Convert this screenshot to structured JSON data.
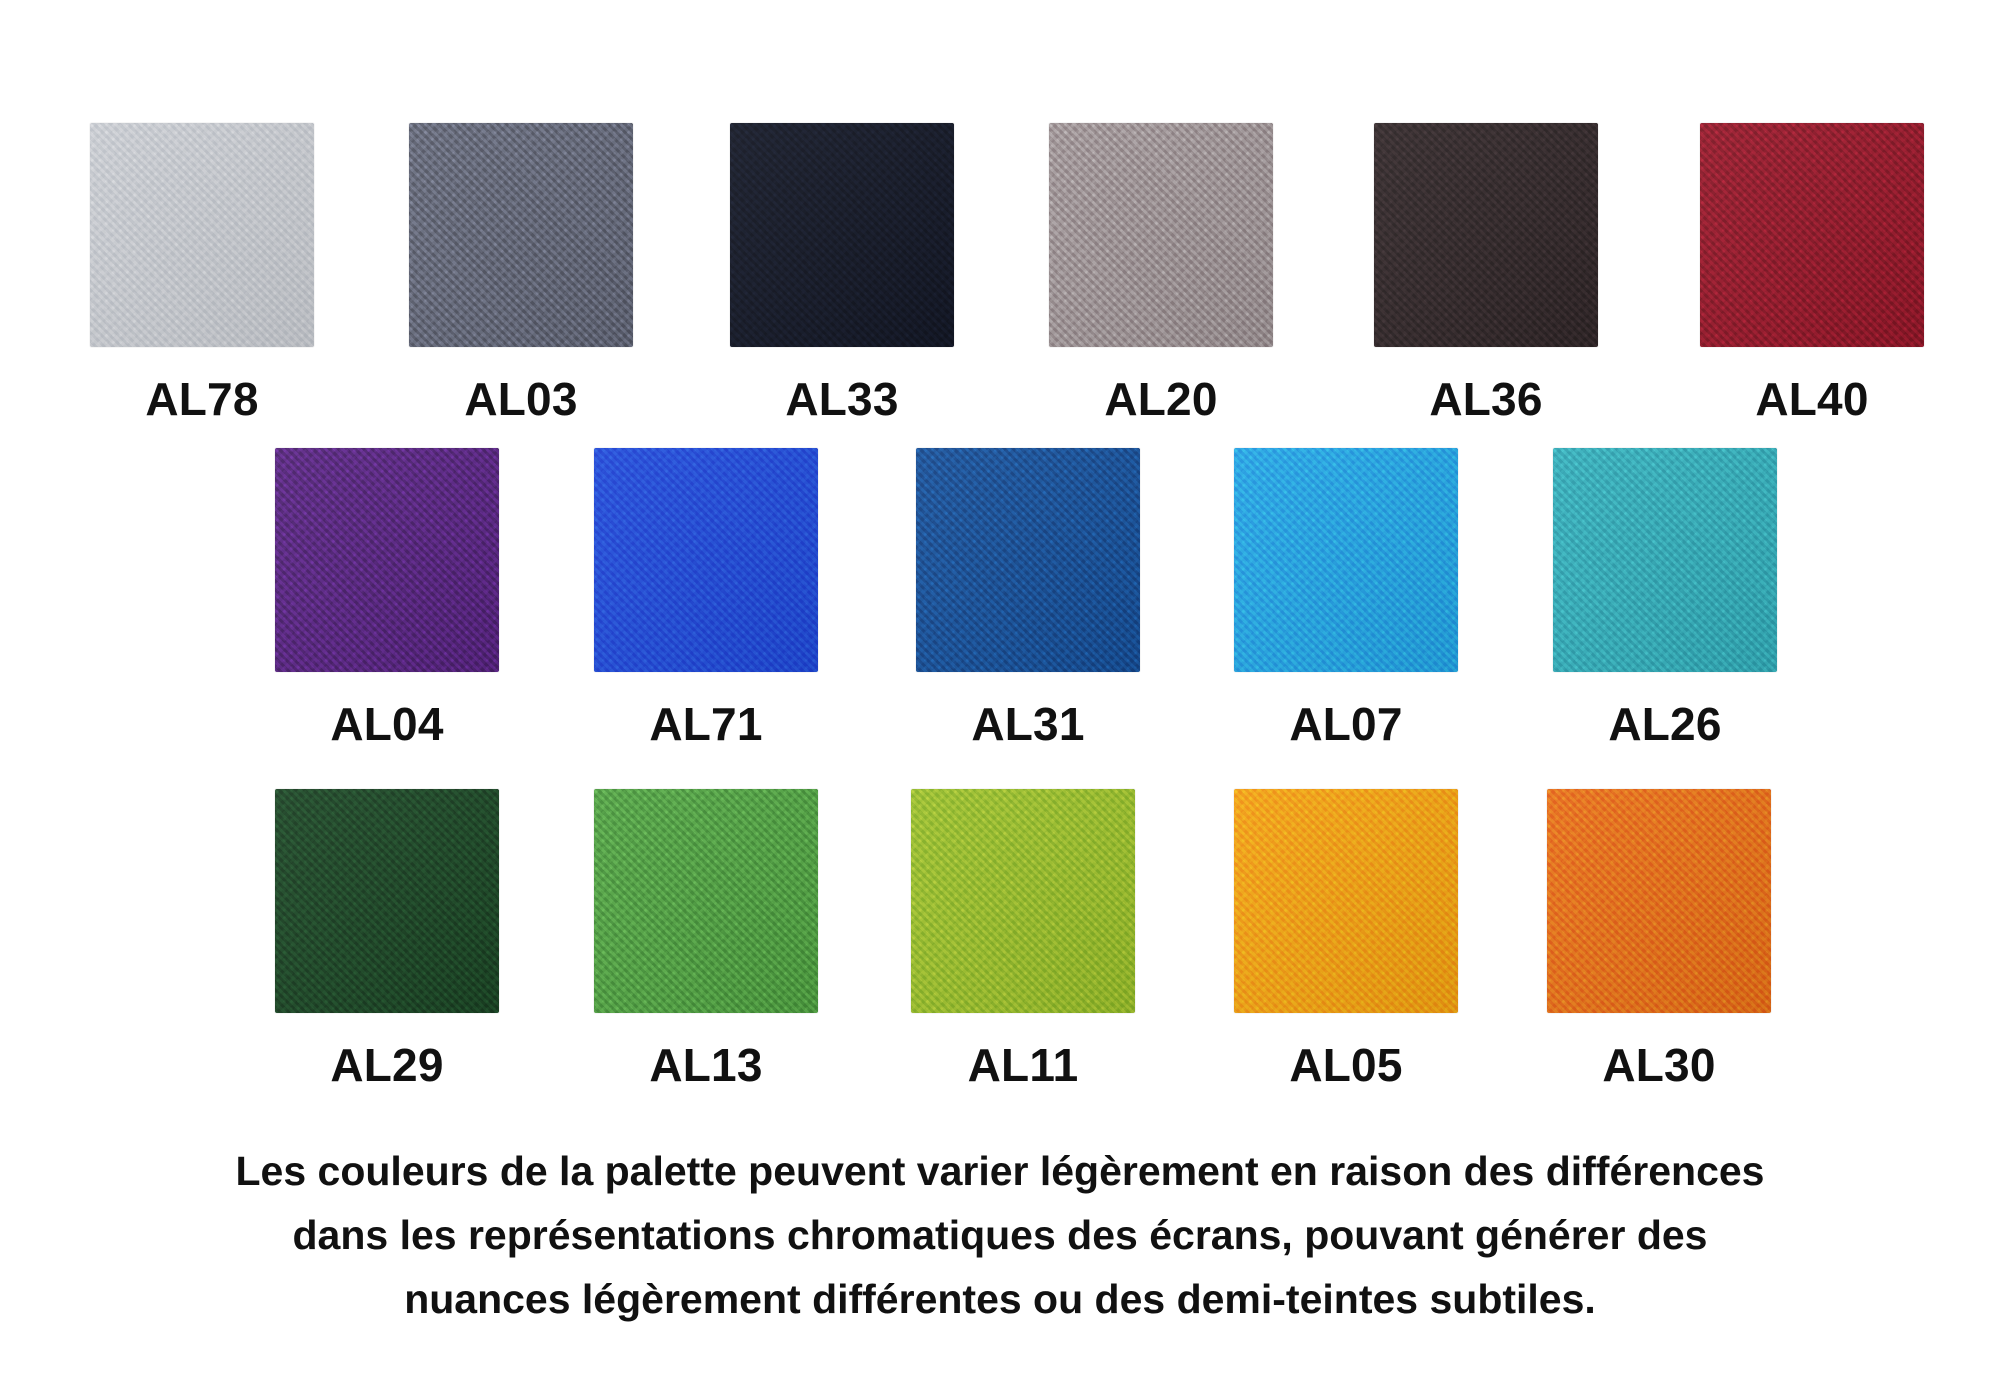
{
  "swatches": [
    {
      "code": "AL78",
      "color": "#c6c9cf"
    },
    {
      "code": "AL03",
      "color": "#5f6373"
    },
    {
      "code": "AL33",
      "color": "#131725"
    },
    {
      "code": "AL20",
      "color": "#9a8f91"
    },
    {
      "code": "AL36",
      "color": "#302628"
    },
    {
      "code": "AL40",
      "color": "#8e1728"
    },
    {
      "code": "AL04",
      "color": "#53237a"
    },
    {
      "code": "AL71",
      "color": "#2048d7"
    },
    {
      "code": "AL31",
      "color": "#164c93"
    },
    {
      "code": "AL07",
      "color": "#23a0e3"
    },
    {
      "code": "AL26",
      "color": "#32a9b6"
    },
    {
      "code": "AL29",
      "color": "#1b4324"
    },
    {
      "code": "AL13",
      "color": "#4d9c40"
    },
    {
      "code": "AL11",
      "color": "#94ba2a"
    },
    {
      "code": "AL05",
      "color": "#f29d12"
    },
    {
      "code": "AL30",
      "color": "#e66b17"
    }
  ],
  "disclaimer": {
    "line1": "Les couleurs de la palette peuvent varier légèrement en raison des différences",
    "line2": "dans les représentations chromatiques des écrans, pouvant générer des",
    "line3": "nuances légèrement différentes ou des demi-teintes subtiles."
  }
}
